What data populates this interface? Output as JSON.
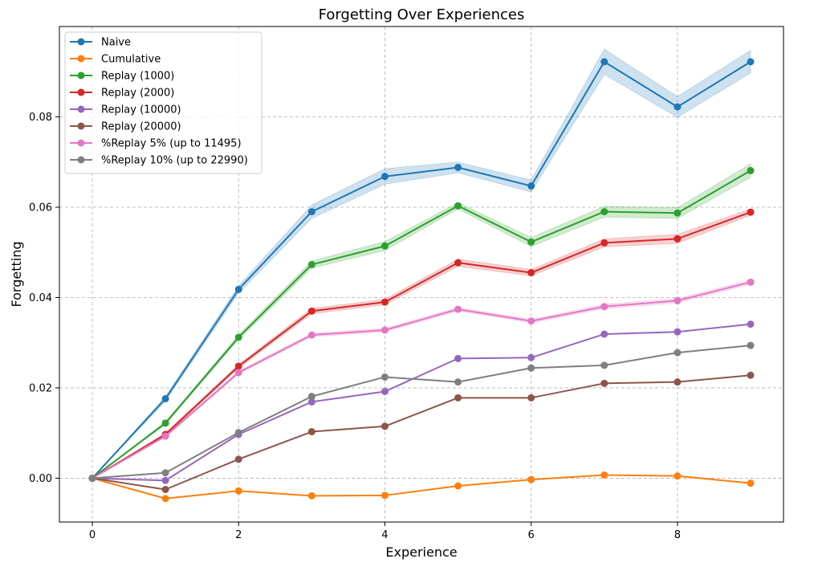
{
  "chart_data": {
    "type": "line",
    "title": "Forgetting Over Experiences",
    "xlabel": "Experience",
    "ylabel": "Forgetting",
    "xlim": [
      -0.45,
      9.45
    ],
    "ylim": [
      -0.0097,
      0.1
    ],
    "x_ticks": [
      0,
      2,
      4,
      6,
      8
    ],
    "x_tick_labels": [
      "0",
      "2",
      "4",
      "6",
      "8"
    ],
    "y_ticks": [
      0.0,
      0.02,
      0.04,
      0.06,
      0.08
    ],
    "y_tick_labels": [
      "0.00",
      "0.02",
      "0.04",
      "0.06",
      "0.08"
    ],
    "grid": true,
    "legend_position": "top-left",
    "x": [
      0,
      1,
      2,
      3,
      4,
      5,
      6,
      7,
      8,
      9
    ],
    "series": [
      {
        "name": "Naive",
        "color": "#1f77b4",
        "values": [
          0.0,
          0.0176,
          0.0418,
          0.059,
          0.0668,
          0.0688,
          0.0647,
          0.0922,
          0.0822,
          0.0922
        ],
        "band": [
          0.0,
          0.0005,
          0.0008,
          0.0015,
          0.0017,
          0.0012,
          0.0013,
          0.0028,
          0.0023,
          0.0025
        ]
      },
      {
        "name": "Cumulative",
        "color": "#ff7f0e",
        "values": [
          0.0,
          -0.0045,
          -0.0028,
          -0.0039,
          -0.0038,
          -0.0017,
          -0.0003,
          0.0007,
          0.0005,
          -0.0011
        ]
      },
      {
        "name": "Replay (1000)",
        "color": "#2ca02c",
        "values": [
          0.0,
          0.0122,
          0.0312,
          0.0473,
          0.0514,
          0.0603,
          0.0523,
          0.059,
          0.0587,
          0.0681
        ],
        "band": [
          0.0,
          0.0003,
          0.0005,
          0.0008,
          0.001,
          0.0007,
          0.001,
          0.0012,
          0.0012,
          0.0015
        ]
      },
      {
        "name": "Replay (2000)",
        "color": "#d62728",
        "values": [
          0.0,
          0.0097,
          0.0248,
          0.037,
          0.039,
          0.0477,
          0.0455,
          0.0521,
          0.053,
          0.0589
        ],
        "band": [
          0.0,
          0.0003,
          0.0004,
          0.0006,
          0.0006,
          0.0008,
          0.0007,
          0.0009,
          0.001,
          0.0007
        ]
      },
      {
        "name": "Replay (10000)",
        "color": "#9467bd",
        "values": [
          0.0,
          -0.0005,
          0.0097,
          0.0169,
          0.0192,
          0.0265,
          0.0267,
          0.0319,
          0.0324,
          0.0341
        ]
      },
      {
        "name": "Replay (20000)",
        "color": "#8c564b",
        "values": [
          0.0,
          -0.0025,
          0.0042,
          0.0103,
          0.0115,
          0.0178,
          0.0178,
          0.021,
          0.0213,
          0.0228
        ]
      },
      {
        "name": "%Replay 5% (up to 11495)",
        "color": "#e377c2",
        "values": [
          0.0,
          0.0093,
          0.0234,
          0.0317,
          0.0328,
          0.0374,
          0.0348,
          0.038,
          0.0393,
          0.0434
        ],
        "band": [
          0.0,
          0.0002,
          0.0003,
          0.0004,
          0.0004,
          0.0004,
          0.0004,
          0.0005,
          0.0005,
          0.0005
        ]
      },
      {
        "name": "%Replay 10% (up to 22990)",
        "color": "#7f7f7f",
        "values": [
          0.0,
          0.0012,
          0.0101,
          0.0181,
          0.0224,
          0.0213,
          0.0244,
          0.025,
          0.0278,
          0.0294
        ]
      }
    ]
  }
}
